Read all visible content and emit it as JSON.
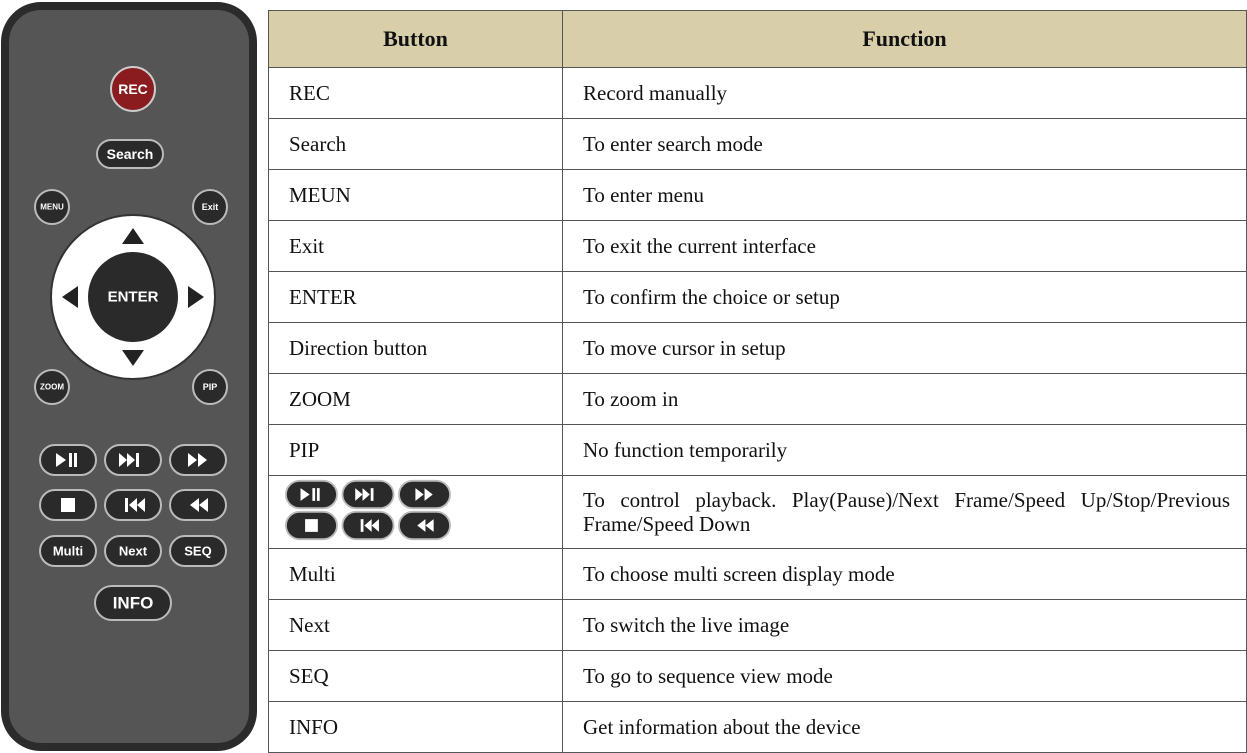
{
  "remote": {
    "buttons": {
      "rec": "REC",
      "search": "Search",
      "menu": "MENU",
      "exit": "Exit",
      "enter": "ENTER",
      "zoom": "ZOOM",
      "pip": "PIP",
      "multi": "Multi",
      "next": "Next",
      "seq": "SEQ",
      "info": "INFO"
    }
  },
  "table": {
    "header": [
      "Button",
      "Function"
    ],
    "rows": [
      {
        "button": "REC",
        "function": "Record manually"
      },
      {
        "button": "Search",
        "function": "To enter search mode"
      },
      {
        "button": "MEUN",
        "function": "To enter menu"
      },
      {
        "button": "Exit",
        "function": "To exit the current interface"
      },
      {
        "button": "ENTER",
        "function": "To confirm the choice or setup"
      },
      {
        "button": "Direction button",
        "function": "To move cursor in setup"
      },
      {
        "button": "ZOOM",
        "function": "To zoom in"
      },
      {
        "button": "PIP",
        "function": "No function temporarily"
      },
      {
        "function": "To control playback. Play(Pause)/Next Frame/Speed Up/Stop/Previous Frame/Speed Down"
      },
      {
        "button": "Multi",
        "function": "To choose multi screen display mode"
      },
      {
        "button": "Next",
        "function": "To switch the live image"
      },
      {
        "button": "SEQ",
        "function": "To go to sequence view mode"
      },
      {
        "button": "INFO",
        "function": "Get information about the device"
      }
    ]
  }
}
